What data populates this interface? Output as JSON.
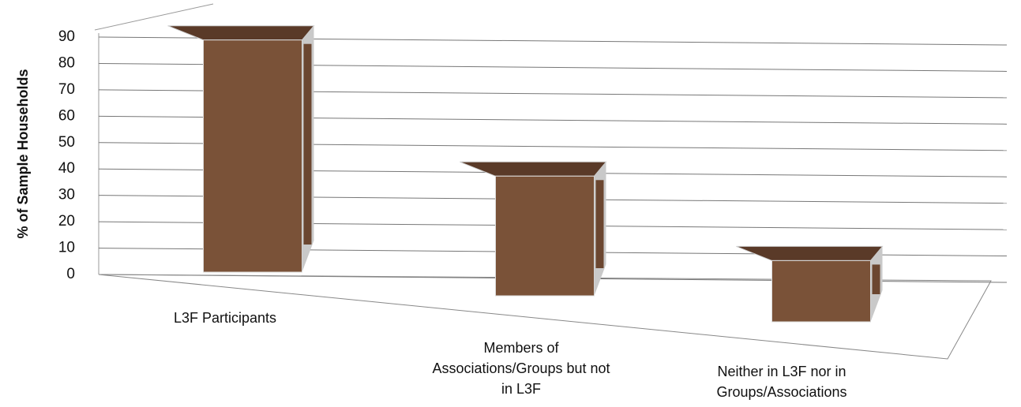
{
  "chart_data": {
    "type": "bar3d",
    "y_label": "% of Sample Households",
    "categories": [
      "L3F Participants",
      "Members of Associations/Groups but not in L3F",
      "Neither in L3F nor in Groups/Associations"
    ],
    "values": [
      88,
      42,
      20
    ],
    "color": "#7a5238",
    "ylim": [
      0,
      90
    ],
    "yticks": [
      0,
      10,
      20,
      30,
      40,
      50,
      60,
      70,
      80,
      90
    ],
    "grid": true
  }
}
